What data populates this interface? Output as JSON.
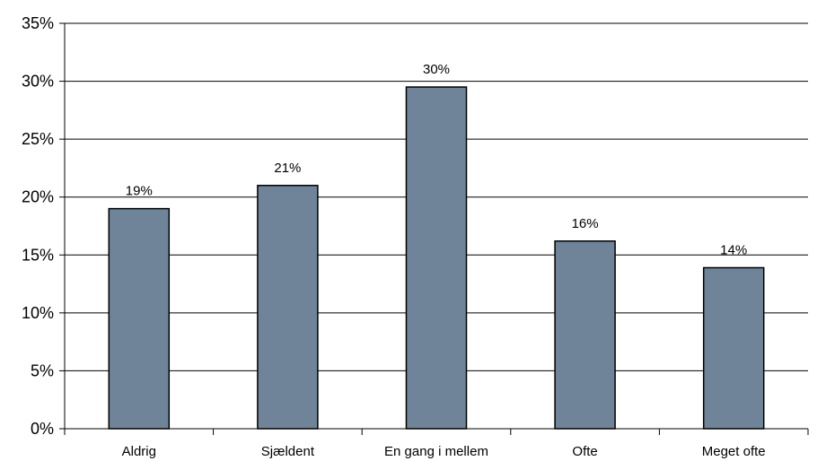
{
  "chart_data": {
    "type": "bar",
    "categories": [
      "Aldrig",
      "Sjældent",
      "En gang i mellem",
      "Ofte",
      "Meget ofte"
    ],
    "values": [
      19,
      21,
      29.5,
      16.2,
      13.9
    ],
    "data_labels": [
      "19%",
      "21%",
      "30%",
      "16%",
      "14%"
    ],
    "y_ticks": [
      "0%",
      "5%",
      "10%",
      "15%",
      "20%",
      "25%",
      "30%",
      "35%"
    ],
    "ylim": [
      0,
      35
    ],
    "y_step": 5,
    "grid": true,
    "legend": "none",
    "bar_color": "#708499",
    "bar_border_color": "#000000"
  }
}
